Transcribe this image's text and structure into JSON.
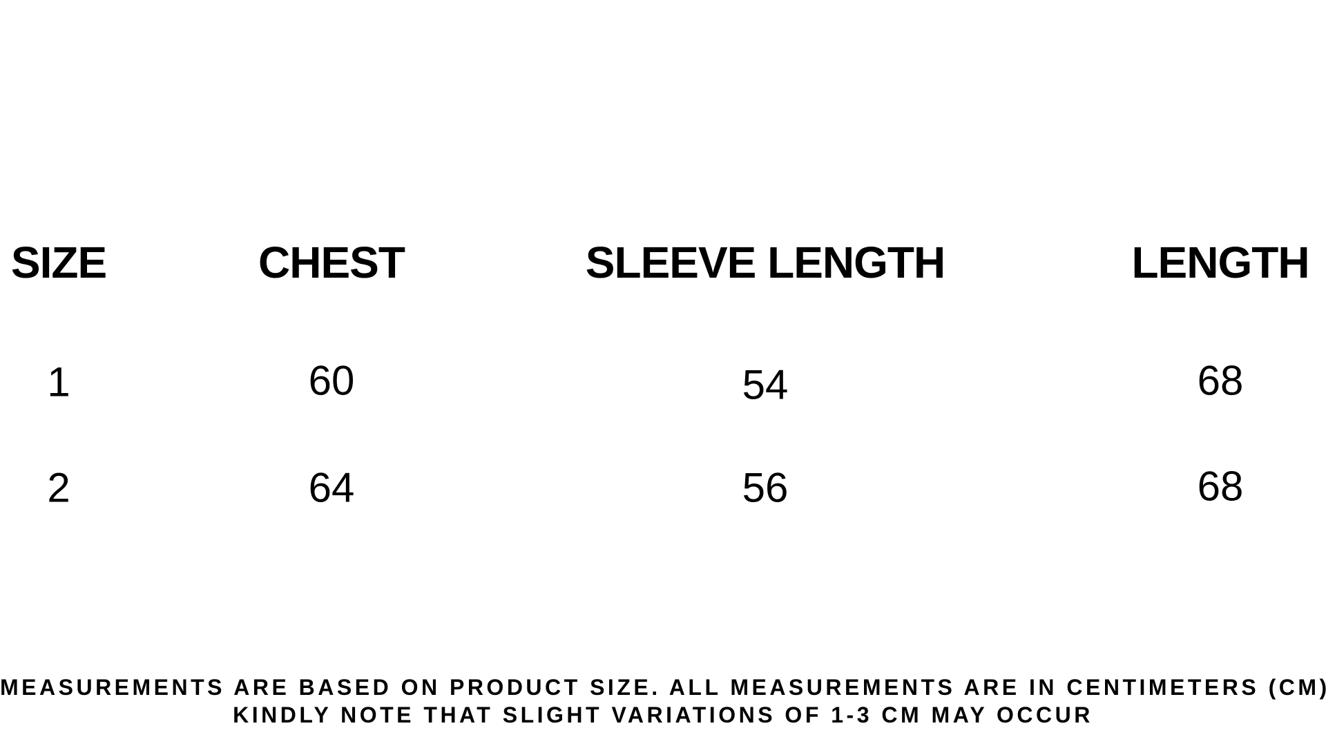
{
  "table": {
    "headers": [
      "SIZE",
      "CHEST",
      "SLEEVE LENGTH",
      "LENGTH"
    ],
    "rows": [
      [
        "1",
        "60",
        "54",
        "68"
      ],
      [
        "2",
        "64",
        "56",
        "68"
      ]
    ]
  },
  "notes": [
    "MEASUREMENTS ARE BASED ON PRODUCT SIZE. ALL MEASUREMENTS ARE IN CENTIMETERS (CM)",
    "KINDLY NOTE THAT SLIGHT VARIATIONS OF 1-3 CM MAY OCCUR"
  ]
}
